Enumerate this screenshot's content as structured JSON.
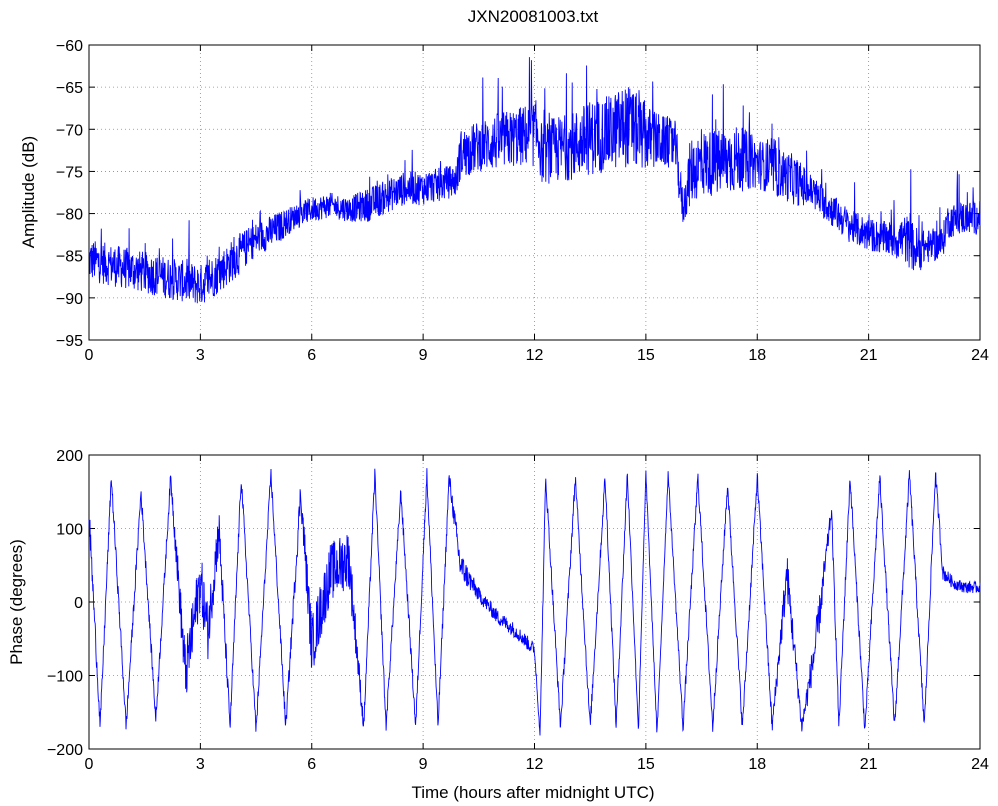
{
  "figure_title": "JXN20081003.txt",
  "line_color": "#0000ff",
  "chart_data": [
    {
      "type": "line",
      "name": "amplitude",
      "title": "JXN20081003.txt",
      "xlabel": "",
      "ylabel": "Amplitude (dB)",
      "xlim": [
        0,
        24
      ],
      "ylim": [
        -95,
        -60
      ],
      "xticks": [
        0,
        3,
        6,
        9,
        12,
        15,
        18,
        21,
        24
      ],
      "yticks": [
        -95,
        -90,
        -85,
        -80,
        -75,
        -70,
        -65,
        -60
      ],
      "grid": true,
      "x": [
        0,
        0.5,
        1,
        1.5,
        2,
        2.5,
        3,
        3.5,
        4,
        4.5,
        5,
        5.5,
        6,
        6.5,
        7,
        7.5,
        8,
        8.5,
        9,
        9.5,
        9.9,
        10,
        10.5,
        11,
        11.5,
        12,
        12.1,
        12.2,
        12.5,
        13,
        13.5,
        14,
        14.5,
        15,
        15.5,
        15.8,
        15.9,
        16,
        16.2,
        16.5,
        17,
        17.5,
        18,
        18.5,
        19,
        19.5,
        20,
        20.5,
        21,
        21.5,
        22,
        22.3,
        22.5,
        23,
        23.1,
        23.5,
        24
      ],
      "values": [
        -85.5,
        -86,
        -86.5,
        -87,
        -87.5,
        -88,
        -88.5,
        -87,
        -85,
        -83,
        -82,
        -80.5,
        -79.5,
        -79,
        -79.5,
        -79,
        -78,
        -77,
        -77,
        -76.5,
        -76,
        -73,
        -72,
        -71.5,
        -71,
        -70.5,
        -70.5,
        -73,
        -72.5,
        -72,
        -71,
        -70.5,
        -69.5,
        -71,
        -71.5,
        -72,
        -76,
        -79.5,
        -75,
        -74,
        -74,
        -73.5,
        -74,
        -75,
        -76,
        -77.5,
        -79.5,
        -81.5,
        -82.5,
        -83,
        -83,
        -84.5,
        -84,
        -83.5,
        -81,
        -80.5,
        -80.5
      ],
      "noise": [
        2.5,
        2.5,
        2.5,
        2.5,
        2.5,
        2.5,
        2.5,
        2.5,
        2.5,
        2,
        2,
        1.5,
        1.5,
        1.5,
        1.5,
        2,
        2,
        2,
        2,
        2,
        2,
        3,
        3,
        3.5,
        3.5,
        4,
        4,
        3.5,
        4,
        4,
        4.5,
        4.5,
        5,
        4,
        3,
        3,
        3,
        2,
        4,
        4,
        4,
        4,
        3,
        3,
        3,
        2,
        2,
        2,
        2,
        2,
        3,
        3,
        2,
        2,
        2,
        2,
        2
      ]
    },
    {
      "type": "line",
      "name": "phase",
      "title": "",
      "xlabel": "Time (hours after midnight UTC)",
      "ylabel": "Phase (degrees)",
      "xlim": [
        0,
        24
      ],
      "ylim": [
        -200,
        200
      ],
      "xticks": [
        0,
        3,
        6,
        9,
        12,
        15,
        18,
        21,
        24
      ],
      "yticks": [
        -200,
        -100,
        0,
        100,
        200
      ],
      "grid": true,
      "x": [
        0,
        0.3,
        0.6,
        1,
        1.4,
        1.8,
        2.2,
        2.6,
        3,
        3.2,
        3.5,
        3.8,
        4.1,
        4.5,
        4.9,
        5.3,
        5.7,
        6,
        6.5,
        7,
        7.4,
        7.7,
        8,
        8.4,
        8.8,
        9.1,
        9.4,
        9.7,
        10,
        10.5,
        11,
        11.5,
        12,
        12.15,
        12.3,
        12.7,
        13.1,
        13.5,
        13.9,
        14.2,
        14.5,
        14.8,
        15,
        15.3,
        15.6,
        16,
        16.4,
        16.8,
        17.2,
        17.6,
        18,
        18.4,
        18.8,
        19.2,
        19.6,
        20,
        20.2,
        20.5,
        20.9,
        21.3,
        21.7,
        22.1,
        22.5,
        22.8,
        23,
        23.3,
        23.6,
        24
      ],
      "values": [
        120,
        -170,
        170,
        -170,
        150,
        -160,
        170,
        -100,
        30,
        -40,
        100,
        -170,
        170,
        -175,
        175,
        -170,
        150,
        -60,
        40,
        60,
        -170,
        175,
        -170,
        150,
        -170,
        175,
        -170,
        170,
        50,
        10,
        -20,
        -40,
        -65,
        -180,
        170,
        -170,
        170,
        -170,
        170,
        -170,
        175,
        -175,
        175,
        -180,
        175,
        -170,
        170,
        -170,
        160,
        -170,
        170,
        -170,
        40,
        -170,
        -50,
        125,
        -170,
        170,
        -175,
        170,
        -170,
        175,
        -170,
        175,
        40,
        25,
        20,
        20
      ],
      "noise": [
        20,
        10,
        10,
        10,
        10,
        10,
        10,
        40,
        40,
        40,
        30,
        10,
        10,
        10,
        10,
        10,
        20,
        40,
        40,
        40,
        10,
        10,
        10,
        10,
        10,
        10,
        10,
        10,
        20,
        10,
        10,
        10,
        10,
        5,
        10,
        10,
        10,
        10,
        10,
        10,
        10,
        5,
        5,
        5,
        5,
        10,
        10,
        10,
        10,
        10,
        10,
        10,
        30,
        10,
        30,
        10,
        10,
        10,
        10,
        10,
        10,
        10,
        10,
        10,
        10,
        8,
        8,
        8
      ]
    }
  ]
}
